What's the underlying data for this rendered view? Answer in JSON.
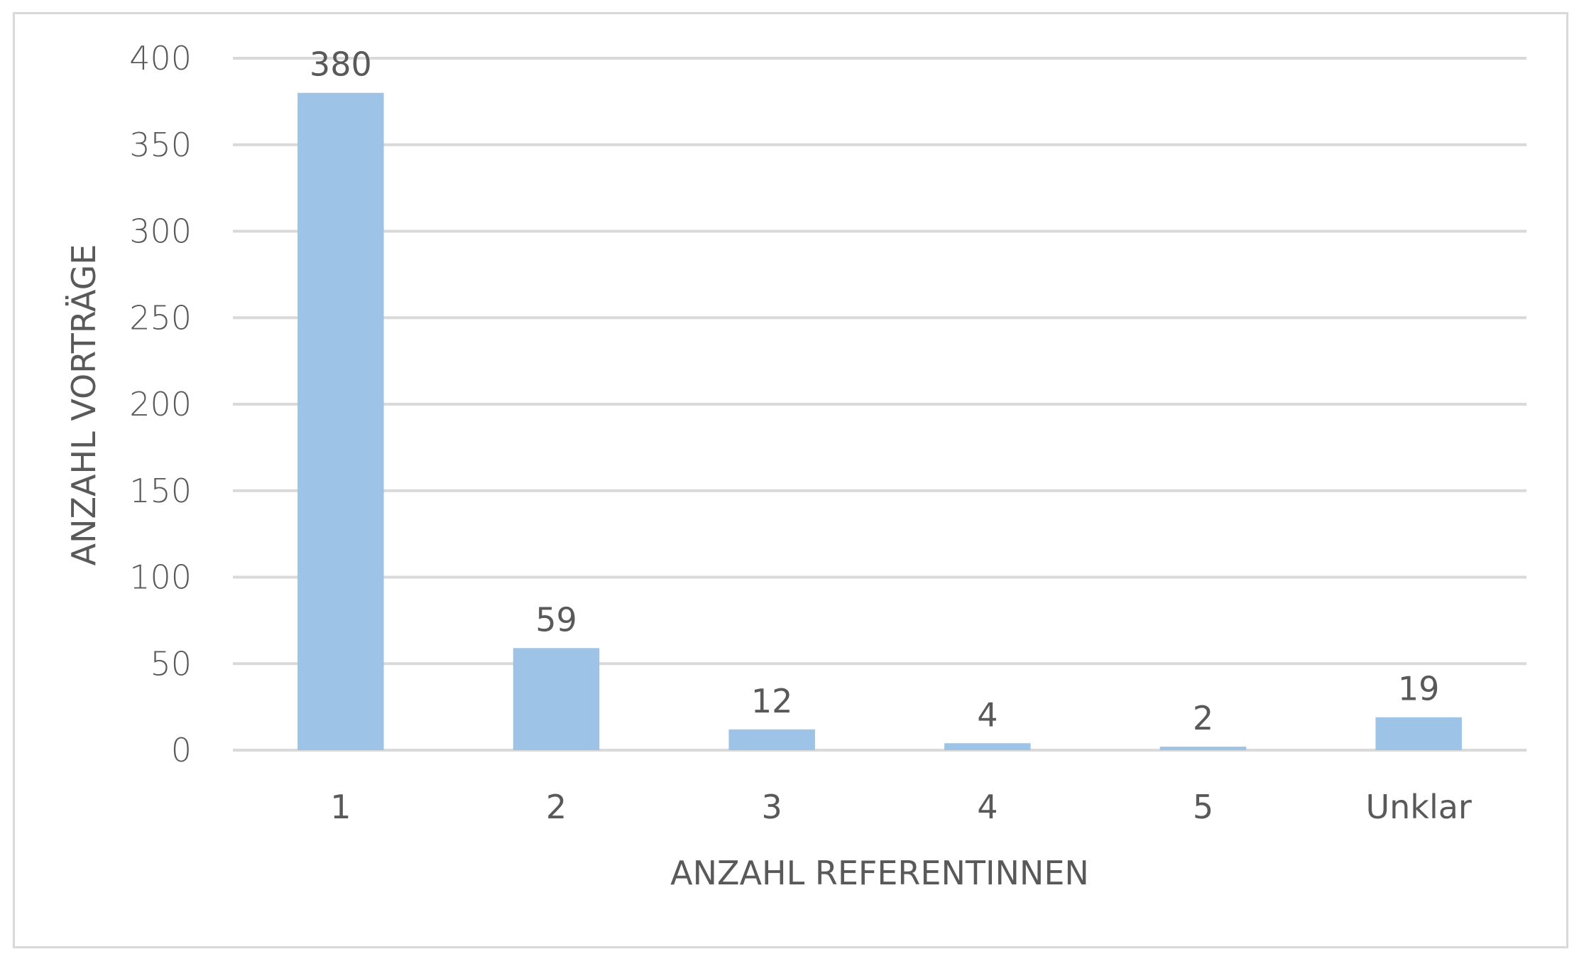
{
  "chart_data": {
    "type": "bar",
    "title": "",
    "xlabel": "ANZAHL REFERENTINNEN",
    "ylabel": "ANZAHL VORTRÄGE",
    "categories": [
      "1",
      "2",
      "3",
      "4",
      "5",
      "Unklar"
    ],
    "values": [
      380,
      59,
      12,
      4,
      2,
      19
    ],
    "data_labels": [
      "380",
      "59",
      "12",
      "4",
      "2",
      "19"
    ],
    "ylim": [
      0,
      400
    ],
    "yticks": [
      0,
      50,
      100,
      150,
      200,
      250,
      300,
      350,
      400
    ],
    "ytick_labels": [
      "0",
      "50",
      "100",
      "150",
      "200",
      "250",
      "300",
      "350",
      "400"
    ],
    "grid": true,
    "legend": "none",
    "bar_color": "#9dc3e6",
    "grid_color": "#d9d9d9",
    "text_color": "#595959"
  }
}
